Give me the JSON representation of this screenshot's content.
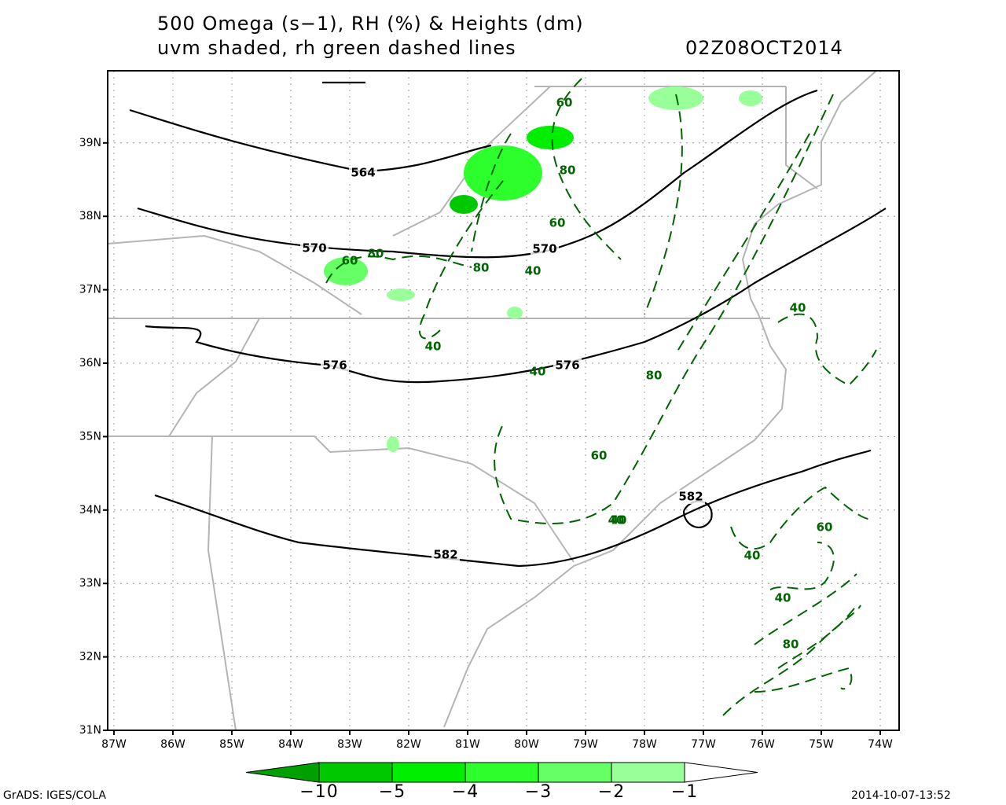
{
  "header": {
    "title_line1": "500 Omega (s−1), RH (%) & Heights (dm)",
    "title_line2": "uvm shaded, rh green dashed lines",
    "valid_time": "02Z08OCT2014"
  },
  "map": {
    "lon_ticks": [
      {
        "value": -87,
        "label": "87W"
      },
      {
        "value": -86,
        "label": "86W"
      },
      {
        "value": -85,
        "label": "85W"
      },
      {
        "value": -84,
        "label": "84W"
      },
      {
        "value": -83,
        "label": "83W"
      },
      {
        "value": -82,
        "label": "82W"
      },
      {
        "value": -81,
        "label": "81W"
      },
      {
        "value": -80,
        "label": "80W"
      },
      {
        "value": -79,
        "label": "79W"
      },
      {
        "value": -78,
        "label": "78W"
      },
      {
        "value": -77,
        "label": "77W"
      },
      {
        "value": -76,
        "label": "76W"
      },
      {
        "value": -75,
        "label": "75W"
      },
      {
        "value": -74,
        "label": "74W"
      }
    ],
    "lat_ticks": [
      {
        "value": 31,
        "label": "31N"
      },
      {
        "value": 32,
        "label": "32N"
      },
      {
        "value": 33,
        "label": "33N"
      },
      {
        "value": 34,
        "label": "34N"
      },
      {
        "value": 35,
        "label": "35N"
      },
      {
        "value": 36,
        "label": "36N"
      },
      {
        "value": 37,
        "label": "37N"
      },
      {
        "value": 38,
        "label": "38N"
      },
      {
        "value": 39,
        "label": "39N"
      }
    ],
    "height_contour_labels": [
      564,
      570,
      570,
      576,
      576,
      582,
      582
    ],
    "rh_contour_labels": [
      60,
      80,
      60,
      80,
      60,
      80,
      40,
      40,
      40,
      40,
      80,
      60,
      40,
      40,
      60,
      40,
      40,
      80
    ]
  },
  "colorbar": {
    "labels": [
      "−10",
      "−5",
      "−4",
      "−3",
      "−2",
      "−1"
    ],
    "colors": [
      "#00a000",
      "#00c800",
      "#00ee00",
      "#2cff2c",
      "#66ff66",
      "#99ff99",
      "#ffffff"
    ]
  },
  "footer": {
    "left": "GrADS: IGES/COLA",
    "right": "2014-10-07-13:52"
  }
}
